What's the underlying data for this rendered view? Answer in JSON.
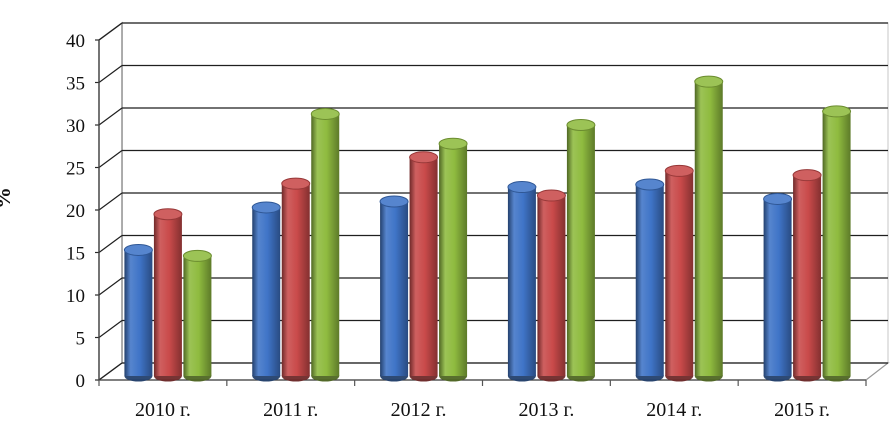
{
  "chart_data": {
    "type": "bar",
    "title": "",
    "xlabel": "",
    "ylabel": "%",
    "ylim": [
      0,
      40
    ],
    "yticks": [
      "0",
      "5",
      "10",
      "15",
      "20",
      "25",
      "30",
      "35",
      "40"
    ],
    "categories": [
      "2010 г.",
      "2011 г.",
      "2012 г.",
      "2013 г.",
      "2014 г.",
      "2015 г."
    ],
    "series": [
      {
        "values": [
          15.3,
          20.3,
          21.0,
          22.7,
          23.0,
          21.3
        ],
        "color": "#3f74c7"
      },
      {
        "values": [
          19.5,
          23.1,
          26.2,
          21.7,
          24.6,
          24.1
        ],
        "color": "#c94a4a"
      },
      {
        "values": [
          14.6,
          31.3,
          27.8,
          30.0,
          35.1,
          31.6
        ],
        "color": "#8fbb3f"
      }
    ],
    "grid": true,
    "legend": "none"
  }
}
